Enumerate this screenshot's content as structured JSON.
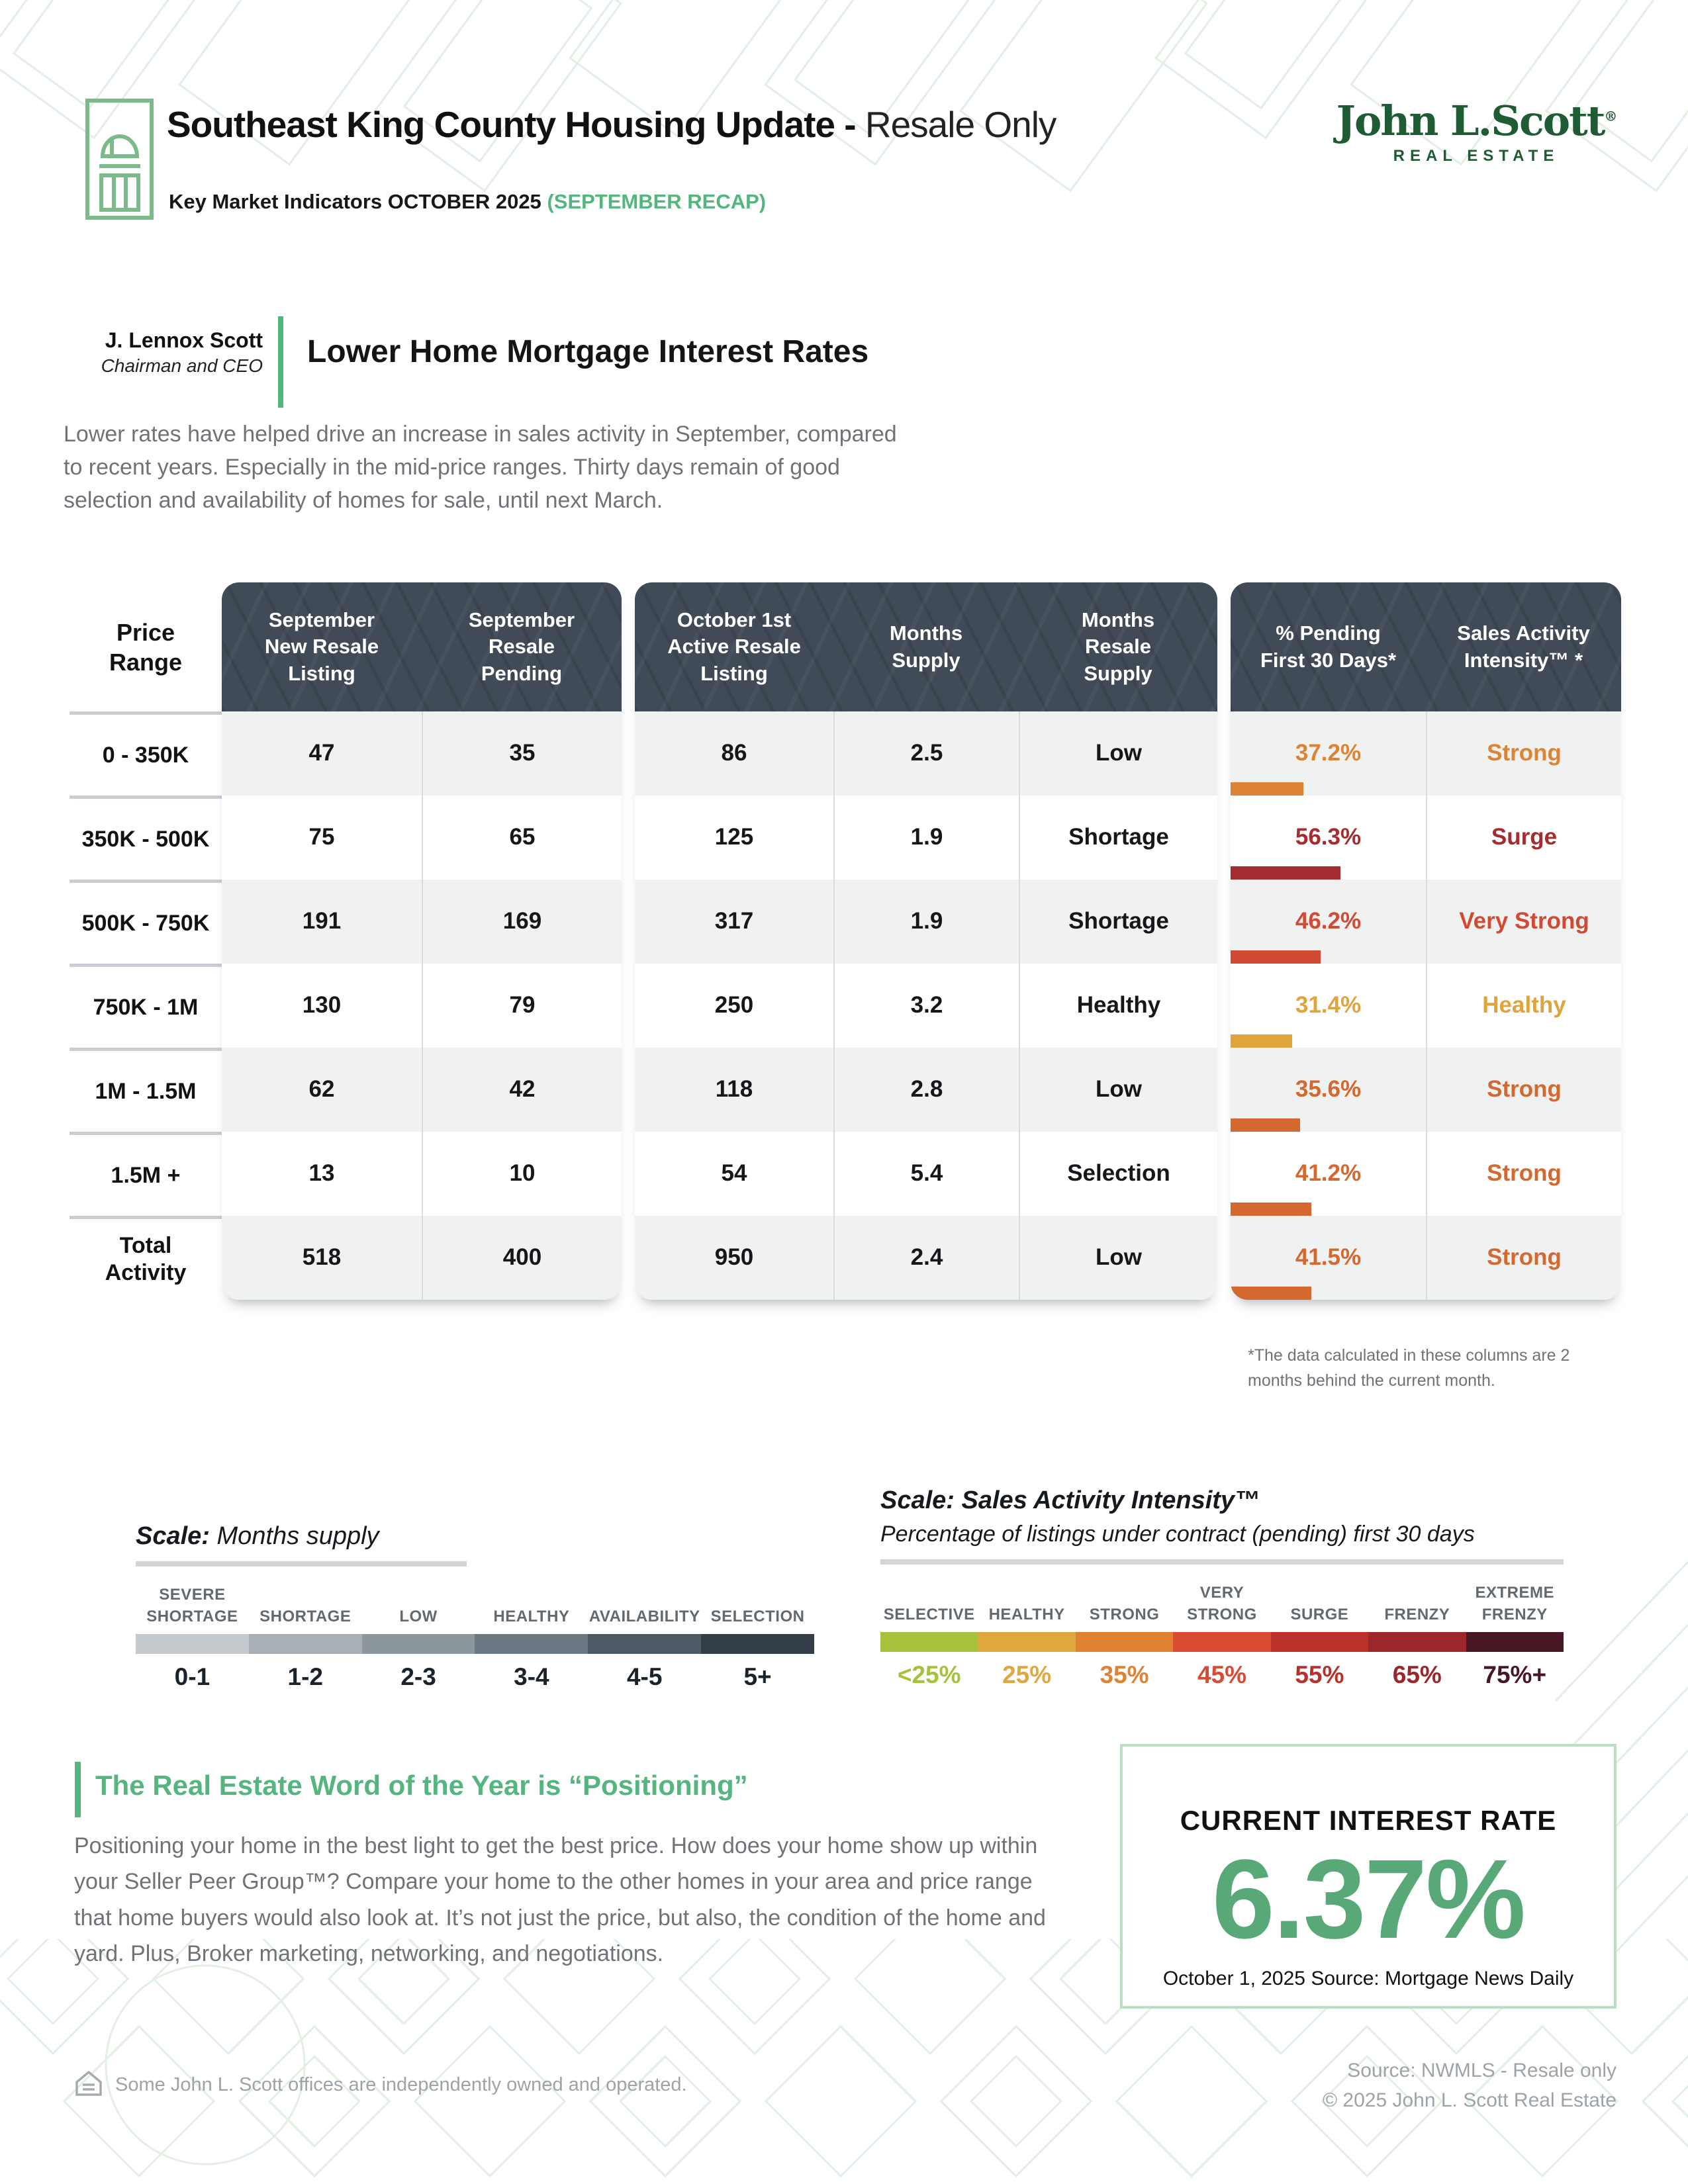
{
  "header": {
    "title_bold": "Southeast King County Housing Update -",
    "title_light": "Resale Only",
    "subtitle_bold": "Key Market Indicators OCTOBER 2025",
    "subtitle_green": "(SEPTEMBER RECAP)",
    "logo_name": "John L.Scott",
    "logo_sub": "REAL ESTATE"
  },
  "intro": {
    "author_name": "J. Lennox Scott",
    "author_role": "Chairman and CEO",
    "headline": "Lower Home Mortgage Interest Rates",
    "paragraph": "Lower rates have helped drive an increase in sales activity in September, compared to recent years. Especially in the mid-price ranges. Thirty days remain of good selection and availability of homes for sale, until next March."
  },
  "table": {
    "header": {
      "price": "Price\nRange",
      "groupA": [
        "September\nNew Resale\nListing",
        "September\nResale\nPending"
      ],
      "groupB": [
        "October 1st\nActive Resale\nListing",
        "Months\nSupply",
        "Months\nResale\nSupply"
      ],
      "groupC": [
        "% Pending\nFirst 30 Days*",
        "Sales Activity\nIntensity™ *"
      ]
    },
    "rows": [
      {
        "label": "0 - 350K",
        "sep_new": "47",
        "sep_pending": "35",
        "oct_active": "86",
        "months_supply": "2.5",
        "resale_supply": "Low",
        "pct": "37.2%",
        "pct_num": 37.2,
        "intensity": "Strong",
        "color": "#DD8334"
      },
      {
        "label": "350K - 500K",
        "sep_new": "75",
        "sep_pending": "65",
        "oct_active": "125",
        "months_supply": "1.9",
        "resale_supply": "Shortage",
        "pct": "56.3%",
        "pct_num": 56.3,
        "intensity": "Surge",
        "color": "#A52C2F"
      },
      {
        "label": "500K - 750K",
        "sep_new": "191",
        "sep_pending": "169",
        "oct_active": "317",
        "months_supply": "1.9",
        "resale_supply": "Shortage",
        "pct": "46.2%",
        "pct_num": 46.2,
        "intensity": "Very Strong",
        "color": "#D14A34"
      },
      {
        "label": "750K - 1M",
        "sep_new": "130",
        "sep_pending": "79",
        "oct_active": "250",
        "months_supply": "3.2",
        "resale_supply": "Healthy",
        "pct": "31.4%",
        "pct_num": 31.4,
        "intensity": "Healthy",
        "color": "#DFA53C"
      },
      {
        "label": "1M - 1.5M",
        "sep_new": "62",
        "sep_pending": "42",
        "oct_active": "118",
        "months_supply": "2.8",
        "resale_supply": "Low",
        "pct": "35.6%",
        "pct_num": 35.6,
        "intensity": "Strong",
        "color": "#D4682F"
      },
      {
        "label": "1.5M +",
        "sep_new": "13",
        "sep_pending": "10",
        "oct_active": "54",
        "months_supply": "5.4",
        "resale_supply": "Selection",
        "pct": "41.2%",
        "pct_num": 41.2,
        "intensity": "Strong",
        "color": "#D4682F"
      },
      {
        "label": "Total Activity",
        "sep_new": "518",
        "sep_pending": "400",
        "oct_active": "950",
        "months_supply": "2.4",
        "resale_supply": "Low",
        "pct": "41.5%",
        "pct_num": 41.5,
        "intensity": "Strong",
        "color": "#D4682F"
      }
    ],
    "footnote": "*The data calculated in these columns are 2 months behind the current month."
  },
  "scales": {
    "months_supply": {
      "title_bold": "Scale:",
      "title_rest": " Months supply",
      "segments": [
        {
          "label": "SEVERE\nSHORTAGE",
          "range": "0-1",
          "color": "#C5CACE"
        },
        {
          "label": "SHORTAGE",
          "range": "1-2",
          "color": "#A8AFB5"
        },
        {
          "label": "LOW",
          "range": "2-3",
          "color": "#8C969D"
        },
        {
          "label": "HEALTHY",
          "range": "3-4",
          "color": "#6B7883"
        },
        {
          "label": "AVAILABILITY",
          "range": "4-5",
          "color": "#4E5B66"
        },
        {
          "label": "SELECTION",
          "range": "5+",
          "color": "#343E49"
        }
      ]
    },
    "intensity": {
      "title": "Scale: Sales Activity Intensity™",
      "subtitle": "Percentage of listings under contract (pending) first 30 days",
      "segments": [
        {
          "label": "SELECTIVE",
          "range": "<25%",
          "color": "#A6C23C"
        },
        {
          "label": "HEALTHY",
          "range": "25%",
          "color": "#E0A73E"
        },
        {
          "label": "STRONG",
          "range": "35%",
          "color": "#E08231"
        },
        {
          "label": "VERY\nSTRONG",
          "range": "45%",
          "color": "#D94B33"
        },
        {
          "label": "SURGE",
          "range": "55%",
          "color": "#BA302B"
        },
        {
          "label": "FRENZY",
          "range": "65%",
          "color": "#9C272B"
        },
        {
          "label": "EXTREME\nFRENZY",
          "range": "75%+",
          "color": "#471723"
        }
      ]
    }
  },
  "word_of_year": {
    "heading": "The Real Estate Word of the Year is “Positioning”",
    "paragraph": "Positioning your home in the best light to get the best price. How does your home show up within your Seller Peer Group™? Compare your home to the other homes in your area and price range that home buyers would also look at. It’s not just the price, but also, the condition of the home and yard. Plus, Broker marketing, networking, and negotiations."
  },
  "interest_rate": {
    "label": "CURRENT INTEREST RATE",
    "value": "6.37%",
    "source": "October 1, 2025 Source: Mortgage News Daily"
  },
  "footer": {
    "left": "Some John L. Scott offices are independently owned and operated.",
    "source": "Source: NWMLS - Resale only",
    "copyright": "© 2025 John L. Scott Real Estate"
  },
  "colors": {
    "accent_green": "#55B57E",
    "logo_green": "#1F5B33",
    "header_slate": "#414B58",
    "row_alt": "#F0F1F1",
    "rate_green": "#58A878",
    "pattern_green": "#E2EFE2"
  }
}
